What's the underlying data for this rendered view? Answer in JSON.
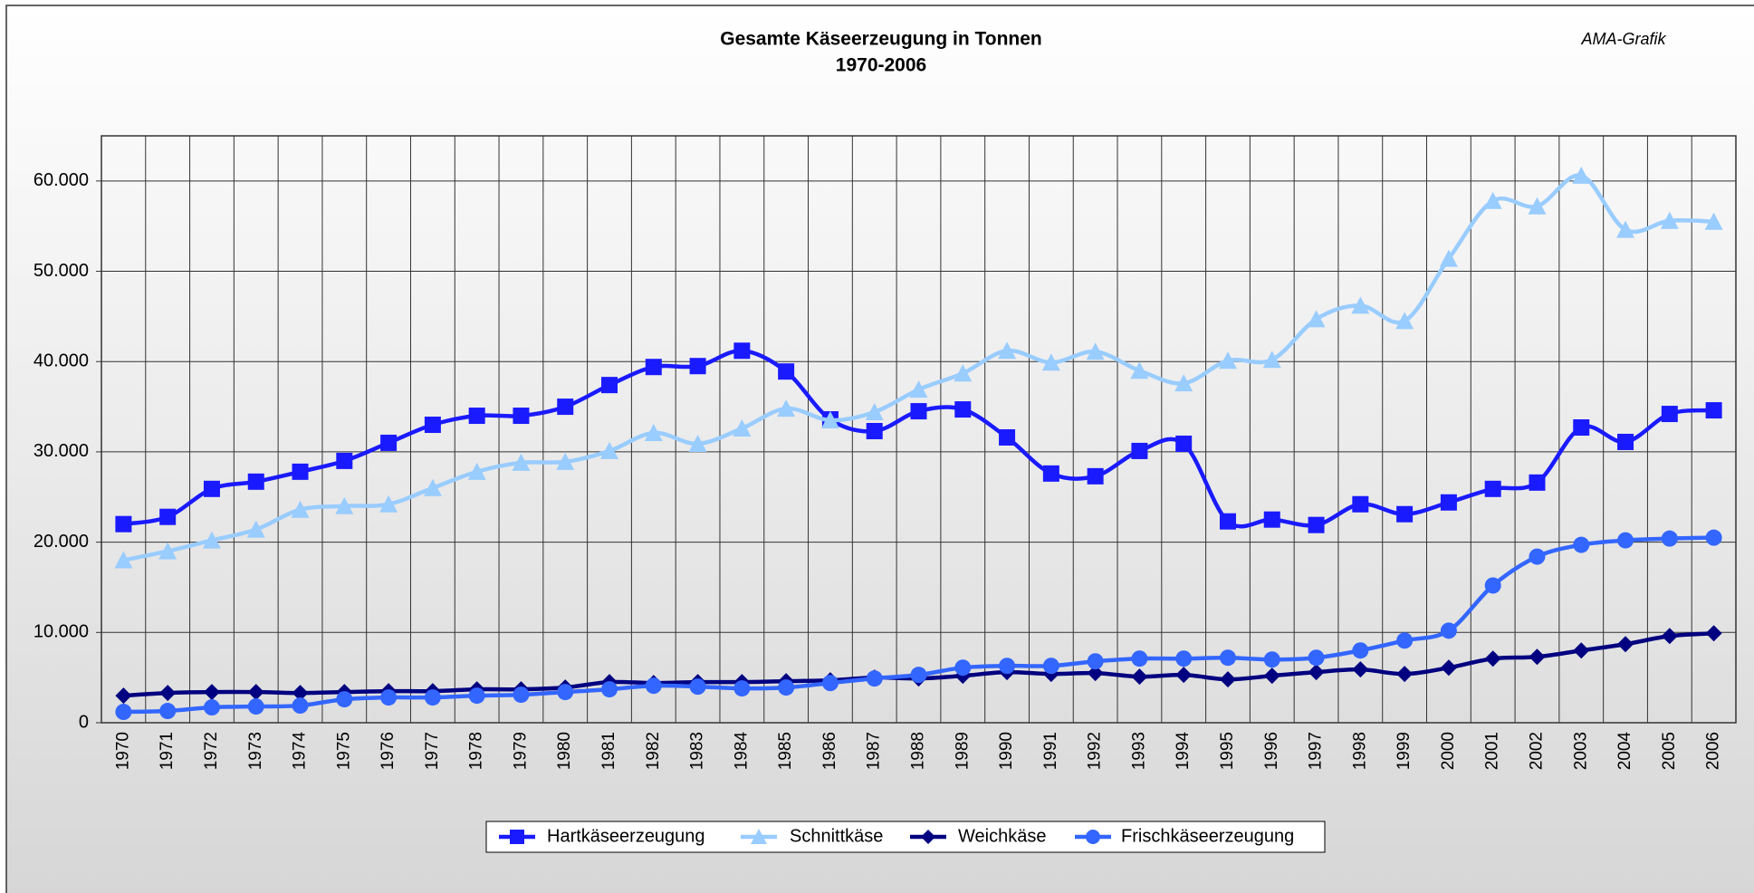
{
  "chart_data": {
    "type": "line",
    "title": "Gesamte Käseerzeugung in Tonnen",
    "subtitle": "1970-2006",
    "annotation": "AMA-Grafik",
    "categories": [
      "1970",
      "1971",
      "1972",
      "1973",
      "1974",
      "1975",
      "1976",
      "1977",
      "1978",
      "1979",
      "1980",
      "1981",
      "1982",
      "1983",
      "1984",
      "1985",
      "1986",
      "1987",
      "1988",
      "1989",
      "1990",
      "1991",
      "1992",
      "1993",
      "1994",
      "1995",
      "1996",
      "1997",
      "1998",
      "1999",
      "2000",
      "2001",
      "2002",
      "2003",
      "2004",
      "2005",
      "2006"
    ],
    "series": [
      {
        "name": "Hartkäseerzeugung",
        "color": "#1a1aff",
        "marker": "square",
        "values": [
          22000,
          22800,
          25900,
          26700,
          27800,
          29000,
          31000,
          33000,
          34000,
          34000,
          35000,
          37400,
          39400,
          39500,
          41200,
          38900,
          33600,
          32300,
          34500,
          34700,
          31600,
          27600,
          27300,
          30100,
          30900,
          22300,
          22500,
          21900,
          24200,
          23100,
          24400,
          25900,
          26600,
          32700,
          31100,
          34200,
          34600
        ]
      },
      {
        "name": "Schnittkäse",
        "color": "#99ccff",
        "marker": "triangle",
        "values": [
          18000,
          19000,
          20200,
          21400,
          23600,
          24000,
          24200,
          26000,
          27800,
          28800,
          28900,
          30100,
          32100,
          30900,
          32600,
          34800,
          33500,
          34400,
          36900,
          38700,
          41200,
          39900,
          41100,
          39000,
          37600,
          40100,
          40200,
          44700,
          46200,
          44500,
          51400,
          57800,
          57200,
          60600,
          54600,
          55600,
          55500
        ]
      },
      {
        "name": "Weichkäse",
        "color": "#000080",
        "marker": "diamond",
        "values": [
          3000,
          3300,
          3400,
          3400,
          3300,
          3400,
          3500,
          3500,
          3700,
          3700,
          3900,
          4500,
          4400,
          4500,
          4500,
          4600,
          4700,
          5000,
          4900,
          5200,
          5600,
          5400,
          5500,
          5100,
          5300,
          4800,
          5200,
          5600,
          5900,
          5400,
          6100,
          7100,
          7300,
          8000,
          8700,
          9600,
          9900
        ]
      },
      {
        "name": "Frischkäseerzeugung",
        "color": "#3366ff",
        "marker": "circle",
        "values": [
          1200,
          1300,
          1700,
          1800,
          1900,
          2600,
          2800,
          2800,
          3000,
          3100,
          3400,
          3700,
          4100,
          4000,
          3800,
          3900,
          4400,
          4900,
          5300,
          6100,
          6300,
          6300,
          6800,
          7100,
          7100,
          7200,
          7000,
          7200,
          8000,
          9100,
          10200,
          15200,
          18400,
          19700,
          20200,
          20400,
          20500
        ]
      }
    ],
    "ylim": [
      0,
      65000
    ],
    "yticks": [
      0,
      {
        "value": 10000,
        "label": "10.000"
      },
      {
        "value": 20000,
        "label": "20.000"
      },
      {
        "value": 30000,
        "label": "30.000"
      },
      {
        "value": 40000,
        "label": "40.000"
      },
      {
        "value": 50000,
        "label": "50.000"
      },
      {
        "value": 60000,
        "label": "60.000"
      }
    ],
    "grid": true,
    "legend": "bottom"
  }
}
